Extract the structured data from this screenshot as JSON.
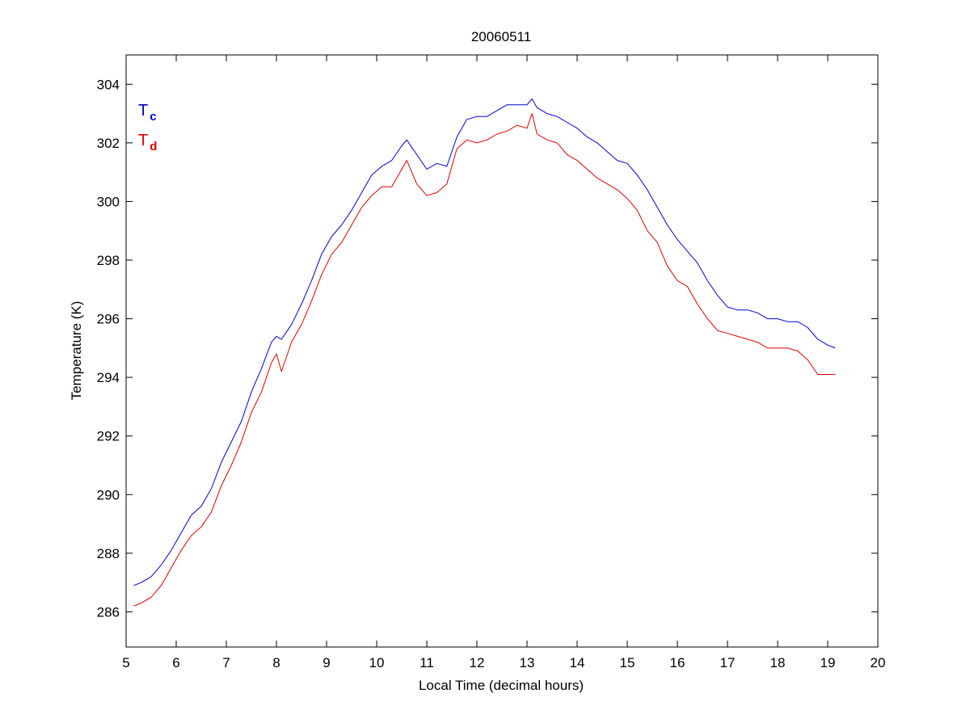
{
  "chart_data": {
    "type": "line",
    "title": "20060511",
    "xlabel": "Local Time (decimal hours)",
    "ylabel": "Temperature (K)",
    "xlim": [
      5,
      20
    ],
    "ylim": [
      284.8,
      305
    ],
    "xticks": [
      5,
      6,
      7,
      8,
      9,
      10,
      11,
      12,
      13,
      14,
      15,
      16,
      17,
      18,
      19,
      20
    ],
    "yticks": [
      286,
      288,
      290,
      292,
      294,
      296,
      298,
      300,
      302,
      304
    ],
    "grid": false,
    "legend_position": "top-left",
    "series": [
      {
        "name": "T",
        "subscript": "c",
        "color": "#0000cc",
        "x": [
          5.15,
          5.3,
          5.5,
          5.7,
          5.9,
          6.1,
          6.3,
          6.5,
          6.7,
          6.9,
          7.1,
          7.3,
          7.5,
          7.7,
          7.9,
          8.0,
          8.1,
          8.3,
          8.5,
          8.7,
          8.9,
          9.1,
          9.3,
          9.5,
          9.7,
          9.9,
          10.1,
          10.3,
          10.5,
          10.6,
          10.8,
          11.0,
          11.2,
          11.4,
          11.6,
          11.8,
          12.0,
          12.2,
          12.4,
          12.6,
          12.8,
          13.0,
          13.1,
          13.2,
          13.4,
          13.6,
          13.8,
          14.0,
          14.2,
          14.4,
          14.6,
          14.8,
          15.0,
          15.2,
          15.4,
          15.6,
          15.8,
          16.0,
          16.2,
          16.4,
          16.6,
          16.8,
          17.0,
          17.2,
          17.4,
          17.6,
          17.8,
          18.0,
          18.2,
          18.4,
          18.6,
          18.8,
          19.0,
          19.15
        ],
        "y": [
          286.9,
          287.0,
          287.2,
          287.6,
          288.1,
          288.7,
          289.3,
          289.6,
          290.2,
          291.1,
          291.8,
          292.5,
          293.5,
          294.3,
          295.2,
          295.4,
          295.3,
          295.8,
          296.5,
          297.3,
          298.2,
          298.8,
          299.2,
          299.7,
          300.3,
          300.9,
          301.2,
          301.4,
          301.9,
          302.1,
          301.6,
          301.1,
          301.3,
          301.2,
          302.2,
          302.8,
          302.9,
          302.9,
          303.1,
          303.3,
          303.3,
          303.3,
          303.5,
          303.2,
          303.0,
          302.9,
          302.7,
          302.5,
          302.2,
          302.0,
          301.7,
          301.4,
          301.3,
          300.9,
          300.4,
          299.8,
          299.2,
          298.7,
          298.3,
          297.9,
          297.3,
          296.8,
          296.4,
          296.3,
          296.3,
          296.2,
          296.0,
          296.0,
          295.9,
          295.9,
          295.7,
          295.3,
          295.1,
          295.0
        ]
      },
      {
        "name": "T",
        "subscript": "d",
        "color": "#dd0000",
        "x": [
          5.15,
          5.3,
          5.5,
          5.7,
          5.9,
          6.1,
          6.3,
          6.5,
          6.7,
          6.9,
          7.1,
          7.3,
          7.5,
          7.7,
          7.9,
          8.0,
          8.1,
          8.3,
          8.5,
          8.7,
          8.9,
          9.1,
          9.3,
          9.5,
          9.7,
          9.9,
          10.1,
          10.3,
          10.5,
          10.6,
          10.8,
          11.0,
          11.2,
          11.4,
          11.6,
          11.8,
          12.0,
          12.2,
          12.4,
          12.6,
          12.8,
          13.0,
          13.1,
          13.2,
          13.4,
          13.6,
          13.8,
          14.0,
          14.2,
          14.4,
          14.6,
          14.8,
          15.0,
          15.2,
          15.4,
          15.6,
          15.8,
          16.0,
          16.2,
          16.4,
          16.6,
          16.8,
          17.0,
          17.2,
          17.4,
          17.6,
          17.8,
          18.0,
          18.2,
          18.4,
          18.6,
          18.8,
          19.0,
          19.15
        ],
        "y": [
          286.2,
          286.3,
          286.5,
          286.9,
          287.5,
          288.1,
          288.6,
          288.9,
          289.4,
          290.3,
          291.0,
          291.8,
          292.8,
          293.5,
          294.5,
          294.8,
          294.2,
          295.2,
          295.8,
          296.6,
          297.5,
          298.2,
          298.6,
          299.2,
          299.8,
          300.2,
          300.5,
          300.5,
          301.1,
          301.4,
          300.6,
          300.2,
          300.3,
          300.6,
          301.8,
          302.1,
          302.0,
          302.1,
          302.3,
          302.4,
          302.6,
          302.5,
          303.0,
          302.3,
          302.1,
          302.0,
          301.6,
          301.4,
          301.1,
          300.8,
          300.6,
          300.4,
          300.1,
          299.7,
          299.0,
          298.6,
          297.8,
          297.3,
          297.1,
          296.5,
          296.0,
          295.6,
          295.5,
          295.4,
          295.3,
          295.2,
          295.0,
          295.0,
          295.0,
          294.9,
          294.6,
          294.1,
          294.1,
          294.1
        ]
      }
    ]
  }
}
